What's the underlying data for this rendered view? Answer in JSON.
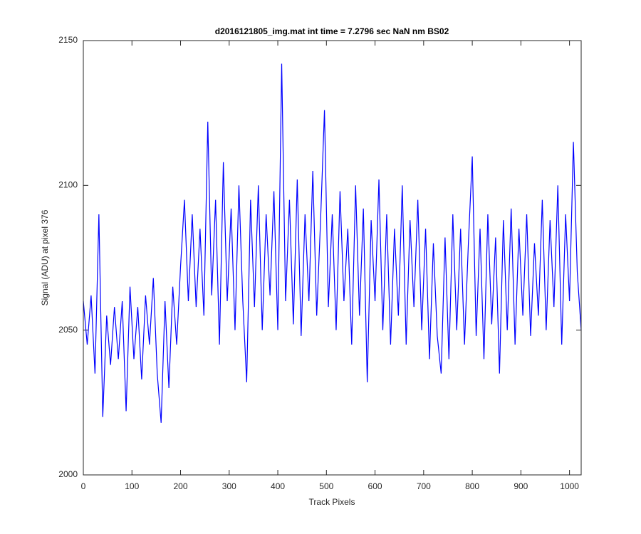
{
  "chart_data": {
    "type": "line",
    "title": "d2016121805_img.mat int time = 7.2796 sec  NaN nm BS02",
    "x_label": "Track Pixels",
    "y_label": "Signal (ADU) at pixel 376",
    "x": [
      0,
      8,
      16,
      24,
      32,
      40,
      48,
      56,
      64,
      72,
      80,
      88,
      96,
      104,
      112,
      120,
      128,
      136,
      144,
      152,
      160,
      168,
      176,
      184,
      192,
      200,
      208,
      216,
      224,
      232,
      240,
      248,
      256,
      264,
      272,
      280,
      288,
      296,
      304,
      312,
      320,
      328,
      336,
      344,
      352,
      360,
      368,
      376,
      384,
      392,
      400,
      408,
      416,
      424,
      432,
      440,
      448,
      456,
      464,
      472,
      480,
      488,
      496,
      504,
      512,
      520,
      528,
      536,
      544,
      552,
      560,
      568,
      576,
      584,
      592,
      600,
      608,
      616,
      624,
      632,
      640,
      648,
      656,
      664,
      672,
      680,
      688,
      696,
      704,
      712,
      720,
      728,
      736,
      744,
      752,
      760,
      768,
      776,
      784,
      792,
      800,
      808,
      816,
      824,
      832,
      840,
      848,
      856,
      864,
      872,
      880,
      888,
      896,
      904,
      912,
      920,
      928,
      936,
      944,
      952,
      960,
      968,
      976,
      984,
      992,
      1000,
      1008,
      1016,
      1024
    ],
    "series": [
      {
        "name": "signal",
        "color": "#0000ff",
        "values": [
          2060,
          2045,
          2062,
          2035,
          2090,
          2020,
          2055,
          2038,
          2058,
          2040,
          2060,
          2022,
          2065,
          2040,
          2058,
          2033,
          2062,
          2045,
          2068,
          2035,
          2018,
          2060,
          2030,
          2065,
          2045,
          2072,
          2095,
          2060,
          2090,
          2058,
          2085,
          2055,
          2122,
          2062,
          2095,
          2045,
          2108,
          2060,
          2092,
          2050,
          2100,
          2060,
          2032,
          2095,
          2058,
          2100,
          2050,
          2090,
          2062,
          2098,
          2050,
          2142,
          2060,
          2095,
          2052,
          2102,
          2048,
          2090,
          2060,
          2105,
          2055,
          2088,
          2126,
          2058,
          2090,
          2050,
          2098,
          2060,
          2085,
          2045,
          2100,
          2055,
          2092,
          2032,
          2088,
          2060,
          2102,
          2050,
          2090,
          2045,
          2085,
          2055,
          2100,
          2045,
          2088,
          2058,
          2095,
          2050,
          2085,
          2040,
          2080,
          2048,
          2035,
          2082,
          2040,
          2090,
          2050,
          2085,
          2045,
          2080,
          2110,
          2048,
          2085,
          2040,
          2090,
          2052,
          2082,
          2035,
          2088,
          2050,
          2092,
          2045,
          2085,
          2055,
          2090,
          2048,
          2080,
          2055,
          2095,
          2050,
          2088,
          2058,
          2100,
          2045,
          2090,
          2060,
          2115,
          2070,
          2050
        ]
      }
    ],
    "xlim": [
      0,
      1024
    ],
    "ylim": [
      2000,
      2150
    ],
    "xticks": [
      0,
      100,
      200,
      300,
      400,
      500,
      600,
      700,
      800,
      900,
      1000
    ],
    "yticks": [
      2000,
      2050,
      2100,
      2150
    ],
    "grid": false
  }
}
